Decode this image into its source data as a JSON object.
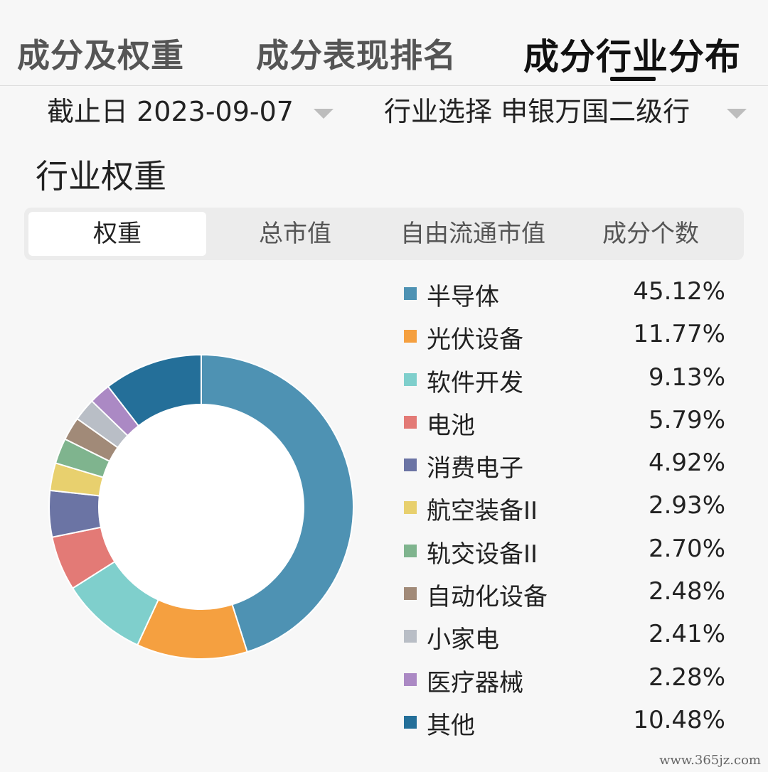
{
  "tabs": [
    {
      "label": "成分及权重",
      "active": false
    },
    {
      "label": "成分表现排名",
      "active": false
    },
    {
      "label": "成分行业分布",
      "active": true
    }
  ],
  "filters": {
    "date_label": "截止日",
    "date_value": "2023-09-07",
    "industry_label": "行业选择",
    "industry_value": "申银万国二级行"
  },
  "section_title": "行业权重",
  "segments": [
    {
      "label": "权重",
      "active": true
    },
    {
      "label": "总市值",
      "active": false
    },
    {
      "label": "自由流通市值",
      "active": false
    },
    {
      "label": "成分个数",
      "active": false
    }
  ],
  "chart_data": {
    "type": "pie",
    "title": "",
    "categories": [
      "半导体",
      "光伏设备",
      "软件开发",
      "电池",
      "消费电子",
      "航空装备II",
      "轨交设备II",
      "自动化设备",
      "小家电",
      "医疗器械",
      "其他"
    ],
    "values": [
      45.12,
      11.77,
      9.13,
      5.79,
      4.92,
      2.93,
      2.7,
      2.48,
      2.41,
      2.28,
      10.48
    ],
    "value_labels": [
      "45.12%",
      "11.77%",
      "9.13%",
      "5.79%",
      "4.92%",
      "2.93%",
      "2.70%",
      "2.48%",
      "2.41%",
      "2.28%",
      "10.48%"
    ],
    "colors": [
      "#4e92b3",
      "#f5a040",
      "#7fcfcc",
      "#e37a76",
      "#6b74a4",
      "#e8d06e",
      "#7fb48e",
      "#a18a78",
      "#b9bec6",
      "#ab89c4",
      "#246f99"
    ],
    "legend_position": "right"
  },
  "watermark": "www.365jz.com"
}
